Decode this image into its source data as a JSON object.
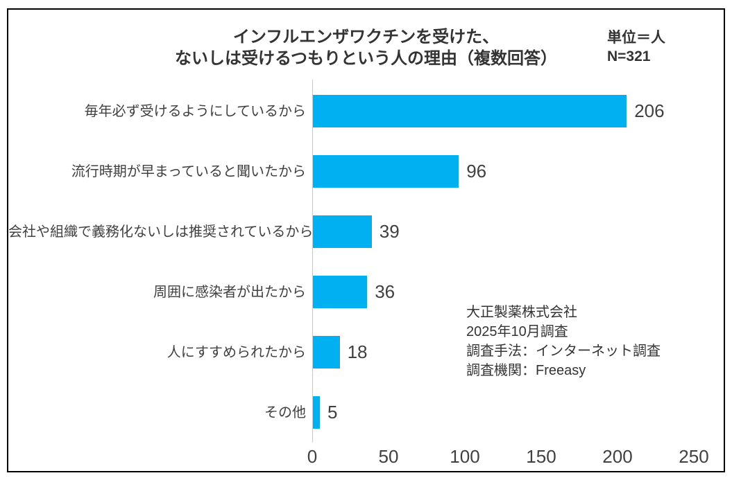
{
  "title": {
    "line1": "インフルエンザワクチンを受けた、",
    "line2": "ないしは受けるつもりという人の理由（複数回答）"
  },
  "unit_note": {
    "line1": "単位＝人",
    "line2": "N=321"
  },
  "source_note": {
    "lines": [
      "大正製薬株式会社",
      "2025年10月調査",
      "調査手法：インターネット調査",
      "調査機関：Freeasy"
    ]
  },
  "colors": {
    "bar": "#00B0F0",
    "text": "#404040",
    "axis_line": "#c9c9c9",
    "frame_border": "#000000"
  },
  "chart_data": {
    "type": "bar",
    "orientation": "horizontal",
    "title": "インフルエンザワクチンを受けた、ないしは受けるつもりという人の理由（複数回答）",
    "unit": "人",
    "n": 321,
    "categories": [
      "毎年必ず受けるようにしているから",
      "流行時期が早まっていると聞いたから",
      "会社や組織で義務化ないしは推奨されているから",
      "周囲に感染者が出たから",
      "人にすすめられたから",
      "その他"
    ],
    "values": [
      206,
      96,
      39,
      36,
      18,
      5
    ],
    "xlabel": "",
    "ylabel": "",
    "xlim": [
      0,
      250
    ],
    "x_ticks": [
      0,
      50,
      100,
      150,
      200,
      250
    ],
    "grid": false,
    "legend": false,
    "bar_color": "#00B0F0"
  }
}
